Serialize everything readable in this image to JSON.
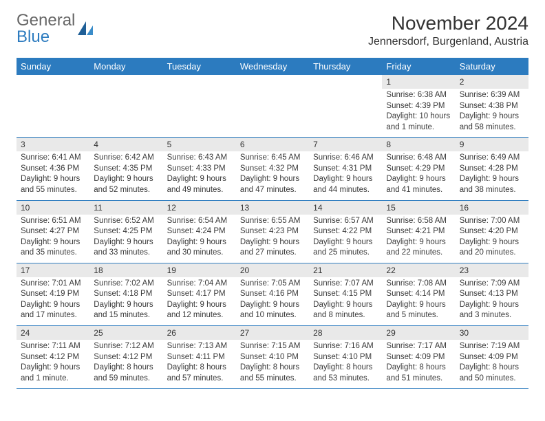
{
  "brand": {
    "part1": "General",
    "part2": "Blue"
  },
  "title": "November 2024",
  "location": "Jennersdorf, Burgenland, Austria",
  "colors": {
    "accent": "#2c7bbf",
    "header_bg": "#2c7bbf",
    "header_text": "#ffffff",
    "daynum_bg": "#e9e9e9",
    "text": "#333333",
    "border": "#2c7bbf",
    "background": "#ffffff"
  },
  "layout": {
    "columns": 7,
    "rows": 5,
    "font_family": "Arial",
    "body_fontsize": 11.5,
    "daynum_fontsize": 12,
    "header_fontsize": 13,
    "title_fontsize": 28,
    "location_fontsize": 16
  },
  "day_names": [
    "Sunday",
    "Monday",
    "Tuesday",
    "Wednesday",
    "Thursday",
    "Friday",
    "Saturday"
  ],
  "weeks": [
    [
      {
        "n": "",
        "sr": "",
        "ss": "",
        "dl": ""
      },
      {
        "n": "",
        "sr": "",
        "ss": "",
        "dl": ""
      },
      {
        "n": "",
        "sr": "",
        "ss": "",
        "dl": ""
      },
      {
        "n": "",
        "sr": "",
        "ss": "",
        "dl": ""
      },
      {
        "n": "",
        "sr": "",
        "ss": "",
        "dl": ""
      },
      {
        "n": "1",
        "sr": "Sunrise: 6:38 AM",
        "ss": "Sunset: 4:39 PM",
        "dl": "Daylight: 10 hours and 1 minute."
      },
      {
        "n": "2",
        "sr": "Sunrise: 6:39 AM",
        "ss": "Sunset: 4:38 PM",
        "dl": "Daylight: 9 hours and 58 minutes."
      }
    ],
    [
      {
        "n": "3",
        "sr": "Sunrise: 6:41 AM",
        "ss": "Sunset: 4:36 PM",
        "dl": "Daylight: 9 hours and 55 minutes."
      },
      {
        "n": "4",
        "sr": "Sunrise: 6:42 AM",
        "ss": "Sunset: 4:35 PM",
        "dl": "Daylight: 9 hours and 52 minutes."
      },
      {
        "n": "5",
        "sr": "Sunrise: 6:43 AM",
        "ss": "Sunset: 4:33 PM",
        "dl": "Daylight: 9 hours and 49 minutes."
      },
      {
        "n": "6",
        "sr": "Sunrise: 6:45 AM",
        "ss": "Sunset: 4:32 PM",
        "dl": "Daylight: 9 hours and 47 minutes."
      },
      {
        "n": "7",
        "sr": "Sunrise: 6:46 AM",
        "ss": "Sunset: 4:31 PM",
        "dl": "Daylight: 9 hours and 44 minutes."
      },
      {
        "n": "8",
        "sr": "Sunrise: 6:48 AM",
        "ss": "Sunset: 4:29 PM",
        "dl": "Daylight: 9 hours and 41 minutes."
      },
      {
        "n": "9",
        "sr": "Sunrise: 6:49 AM",
        "ss": "Sunset: 4:28 PM",
        "dl": "Daylight: 9 hours and 38 minutes."
      }
    ],
    [
      {
        "n": "10",
        "sr": "Sunrise: 6:51 AM",
        "ss": "Sunset: 4:27 PM",
        "dl": "Daylight: 9 hours and 35 minutes."
      },
      {
        "n": "11",
        "sr": "Sunrise: 6:52 AM",
        "ss": "Sunset: 4:25 PM",
        "dl": "Daylight: 9 hours and 33 minutes."
      },
      {
        "n": "12",
        "sr": "Sunrise: 6:54 AM",
        "ss": "Sunset: 4:24 PM",
        "dl": "Daylight: 9 hours and 30 minutes."
      },
      {
        "n": "13",
        "sr": "Sunrise: 6:55 AM",
        "ss": "Sunset: 4:23 PM",
        "dl": "Daylight: 9 hours and 27 minutes."
      },
      {
        "n": "14",
        "sr": "Sunrise: 6:57 AM",
        "ss": "Sunset: 4:22 PM",
        "dl": "Daylight: 9 hours and 25 minutes."
      },
      {
        "n": "15",
        "sr": "Sunrise: 6:58 AM",
        "ss": "Sunset: 4:21 PM",
        "dl": "Daylight: 9 hours and 22 minutes."
      },
      {
        "n": "16",
        "sr": "Sunrise: 7:00 AM",
        "ss": "Sunset: 4:20 PM",
        "dl": "Daylight: 9 hours and 20 minutes."
      }
    ],
    [
      {
        "n": "17",
        "sr": "Sunrise: 7:01 AM",
        "ss": "Sunset: 4:19 PM",
        "dl": "Daylight: 9 hours and 17 minutes."
      },
      {
        "n": "18",
        "sr": "Sunrise: 7:02 AM",
        "ss": "Sunset: 4:18 PM",
        "dl": "Daylight: 9 hours and 15 minutes."
      },
      {
        "n": "19",
        "sr": "Sunrise: 7:04 AM",
        "ss": "Sunset: 4:17 PM",
        "dl": "Daylight: 9 hours and 12 minutes."
      },
      {
        "n": "20",
        "sr": "Sunrise: 7:05 AM",
        "ss": "Sunset: 4:16 PM",
        "dl": "Daylight: 9 hours and 10 minutes."
      },
      {
        "n": "21",
        "sr": "Sunrise: 7:07 AM",
        "ss": "Sunset: 4:15 PM",
        "dl": "Daylight: 9 hours and 8 minutes."
      },
      {
        "n": "22",
        "sr": "Sunrise: 7:08 AM",
        "ss": "Sunset: 4:14 PM",
        "dl": "Daylight: 9 hours and 5 minutes."
      },
      {
        "n": "23",
        "sr": "Sunrise: 7:09 AM",
        "ss": "Sunset: 4:13 PM",
        "dl": "Daylight: 9 hours and 3 minutes."
      }
    ],
    [
      {
        "n": "24",
        "sr": "Sunrise: 7:11 AM",
        "ss": "Sunset: 4:12 PM",
        "dl": "Daylight: 9 hours and 1 minute."
      },
      {
        "n": "25",
        "sr": "Sunrise: 7:12 AM",
        "ss": "Sunset: 4:12 PM",
        "dl": "Daylight: 8 hours and 59 minutes."
      },
      {
        "n": "26",
        "sr": "Sunrise: 7:13 AM",
        "ss": "Sunset: 4:11 PM",
        "dl": "Daylight: 8 hours and 57 minutes."
      },
      {
        "n": "27",
        "sr": "Sunrise: 7:15 AM",
        "ss": "Sunset: 4:10 PM",
        "dl": "Daylight: 8 hours and 55 minutes."
      },
      {
        "n": "28",
        "sr": "Sunrise: 7:16 AM",
        "ss": "Sunset: 4:10 PM",
        "dl": "Daylight: 8 hours and 53 minutes."
      },
      {
        "n": "29",
        "sr": "Sunrise: 7:17 AM",
        "ss": "Sunset: 4:09 PM",
        "dl": "Daylight: 8 hours and 51 minutes."
      },
      {
        "n": "30",
        "sr": "Sunrise: 7:19 AM",
        "ss": "Sunset: 4:09 PM",
        "dl": "Daylight: 8 hours and 50 minutes."
      }
    ]
  ]
}
